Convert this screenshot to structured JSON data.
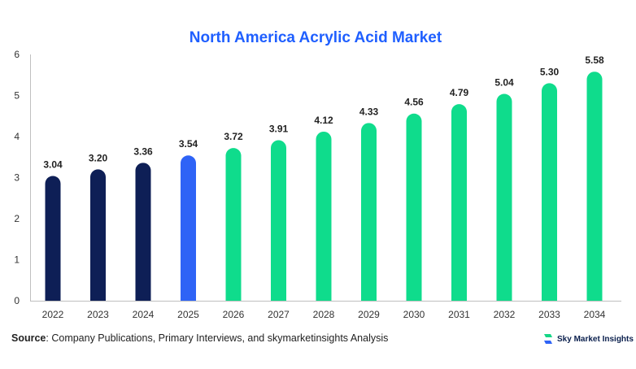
{
  "colors": {
    "title": "#1f5fff",
    "historical": "#0e1f56",
    "current": "#2e63f6",
    "forecast": "#0fdc8c",
    "axis": "#bfbfbf",
    "logo_green": "#15d686",
    "logo_blue": "#2e63f6"
  },
  "chart_data": {
    "type": "bar",
    "title": "North America Acrylic Acid Market",
    "xlabel": "",
    "ylabel": "",
    "ylim": [
      0,
      6
    ],
    "yticks": [
      "0",
      "1",
      "2",
      "3",
      "4",
      "5",
      "6"
    ],
    "grid": false,
    "legend": "none",
    "categories": [
      "2022",
      "2023",
      "2024",
      "2025",
      "2026",
      "2027",
      "2028",
      "2029",
      "2030",
      "2031",
      "2032",
      "2033",
      "2034"
    ],
    "values": [
      3.04,
      3.2,
      3.36,
      3.54,
      3.72,
      3.91,
      4.12,
      4.33,
      4.56,
      4.79,
      5.04,
      5.3,
      5.58
    ],
    "value_labels": [
      "3.04",
      "3.20",
      "3.36",
      "3.54",
      "3.72",
      "3.91",
      "4.12",
      "4.33",
      "4.56",
      "4.79",
      "5.04",
      "5.30",
      "5.58"
    ],
    "bar_colors": [
      "historical",
      "historical",
      "historical",
      "current",
      "forecast",
      "forecast",
      "forecast",
      "forecast",
      "forecast",
      "forecast",
      "forecast",
      "forecast",
      "forecast"
    ]
  },
  "footer": {
    "source_label": "Source",
    "source_text": ": Company Publications, Primary Interviews, and skymarketinsights Analysis",
    "brand_name": "Sky Market Insights",
    "brand_icon": "sky-market-insights-logo-icon"
  }
}
